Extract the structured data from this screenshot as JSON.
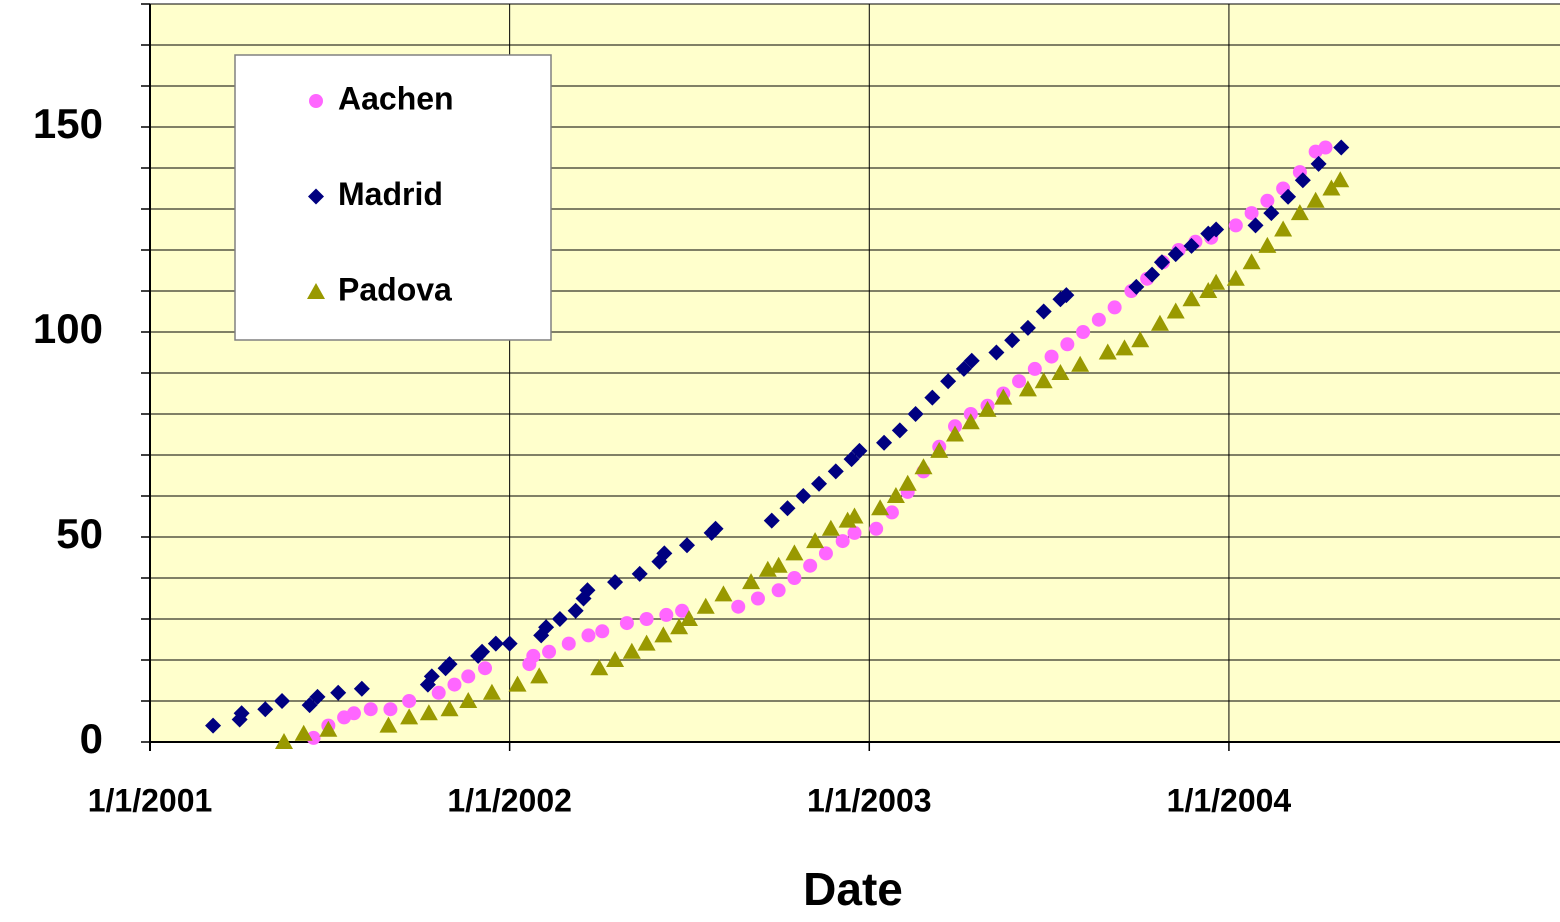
{
  "chart_data": {
    "type": "scatter",
    "xlabel": "Date",
    "xlim": [
      "2001-01-01",
      "2004-12-02"
    ],
    "xticks": [
      {
        "value": "2001-01-01",
        "label": "1/1/2001"
      },
      {
        "value": "2002-01-01",
        "label": "1/1/2002"
      },
      {
        "value": "2003-01-01",
        "label": "1/1/2003"
      },
      {
        "value": "2004-01-01",
        "label": "1/1/2004"
      }
    ],
    "ylim": [
      0,
      180
    ],
    "yticks": [
      0,
      50,
      100,
      150
    ],
    "yminorticks": [
      10,
      20,
      30,
      40,
      60,
      70,
      80,
      90,
      110,
      120,
      130,
      140,
      160,
      170,
      180
    ],
    "grid": true,
    "legend": "upper left",
    "series": [
      {
        "name": "Aachen",
        "color": "#ff66ff",
        "marker": "circle",
        "x": [
          "2001-06-16",
          "2001-07-01",
          "2001-07-17",
          "2001-07-27",
          "2001-08-13",
          "2001-09-02",
          "2001-09-21",
          "2001-10-21",
          "2001-11-06",
          "2001-11-20",
          "2001-12-07",
          "2002-01-21",
          "2002-01-25",
          "2002-02-10",
          "2002-03-02",
          "2002-03-22",
          "2002-04-05",
          "2002-04-30",
          "2002-05-20",
          "2002-06-09",
          "2002-06-25",
          "2002-08-21",
          "2002-09-10",
          "2002-10-01",
          "2002-10-17",
          "2002-11-02",
          "2002-11-18",
          "2002-12-05",
          "2002-12-17",
          "2003-01-08",
          "2003-01-24",
          "2003-02-09",
          "2003-02-25",
          "2003-03-13",
          "2003-03-29",
          "2003-04-14",
          "2003-05-01",
          "2003-05-17",
          "2003-06-02",
          "2003-06-18",
          "2003-07-05",
          "2003-07-21",
          "2003-08-06",
          "2003-08-22",
          "2003-09-07",
          "2003-09-24",
          "2003-10-10",
          "2003-10-26",
          "2003-11-11",
          "2003-11-28",
          "2003-12-14",
          "2004-01-08",
          "2004-01-24",
          "2004-02-09",
          "2004-02-25",
          "2004-03-13",
          "2004-03-29",
          "2004-04-08"
        ],
        "values": [
          1,
          4,
          6,
          7,
          8,
          8,
          10,
          12,
          14,
          16,
          18,
          19,
          21,
          22,
          24,
          26,
          27,
          29,
          30,
          31,
          32,
          33,
          35,
          37,
          40,
          43,
          46,
          49,
          51,
          52,
          56,
          61,
          66,
          72,
          77,
          80,
          82,
          85,
          88,
          91,
          94,
          97,
          100,
          103,
          106,
          110,
          113,
          117,
          120,
          122,
          123,
          126,
          129,
          132,
          135,
          139,
          144,
          145
        ]
      },
      {
        "name": "Madrid",
        "color": "#000080",
        "marker": "diamond",
        "x": [
          "2001-03-06",
          "2001-04-02",
          "2001-04-04",
          "2001-04-28",
          "2001-05-15",
          "2001-06-12",
          "2001-06-20",
          "2001-07-11",
          "2001-08-04",
          "2001-10-10",
          "2001-10-14",
          "2001-10-28",
          "2001-11-01",
          "2001-11-30",
          "2001-12-04",
          "2001-12-18",
          "2002-01-01",
          "2002-02-02",
          "2002-02-07",
          "2002-02-21",
          "2002-03-09",
          "2002-03-17",
          "2002-03-21",
          "2002-04-18",
          "2002-05-13",
          "2002-06-02",
          "2002-06-07",
          "2002-06-30",
          "2002-07-25",
          "2002-07-29",
          "2002-09-24",
          "2002-10-10",
          "2002-10-26",
          "2002-11-11",
          "2002-11-28",
          "2002-12-14",
          "2002-12-22",
          "2003-01-16",
          "2003-02-01",
          "2003-02-17",
          "2003-03-06",
          "2003-03-22",
          "2003-04-07",
          "2003-04-15",
          "2003-05-10",
          "2003-05-26",
          "2003-06-11",
          "2003-06-27",
          "2003-07-14",
          "2003-07-20",
          "2003-09-29",
          "2003-10-15",
          "2003-10-25",
          "2003-11-08",
          "2003-11-24",
          "2003-12-11",
          "2003-12-19",
          "2004-01-28",
          "2004-02-13",
          "2004-03-01",
          "2004-03-16",
          "2004-04-01",
          "2004-04-24"
        ],
        "values": [
          4,
          5.5,
          7,
          8,
          10,
          9,
          11,
          12,
          13,
          14,
          16,
          18,
          19,
          21,
          22,
          24,
          24,
          26,
          28,
          30,
          32,
          35,
          37,
          39,
          41,
          44,
          46,
          48,
          51,
          52,
          54,
          57,
          60,
          63,
          66,
          69,
          71,
          73,
          76,
          80,
          84,
          88,
          91,
          93,
          95,
          98,
          101,
          105,
          108,
          109,
          111,
          114,
          117,
          119,
          121,
          124,
          125,
          126,
          129,
          133,
          137,
          141,
          145
        ]
      },
      {
        "name": "Padova",
        "color": "#999900",
        "marker": "triangle",
        "x": [
          "2001-05-17",
          "2001-06-06",
          "2001-07-01",
          "2001-08-31",
          "2001-09-21",
          "2001-10-11",
          "2001-11-01",
          "2001-11-20",
          "2001-12-14",
          "2002-01-09",
          "2002-01-31",
          "2002-04-02",
          "2002-04-18",
          "2002-05-05",
          "2002-05-20",
          "2002-06-06",
          "2002-06-22",
          "2002-07-02",
          "2002-07-19",
          "2002-08-06",
          "2002-09-03",
          "2002-09-20",
          "2002-10-01",
          "2002-10-17",
          "2002-11-07",
          "2002-11-23",
          "2002-12-10",
          "2002-12-17",
          "2003-01-12",
          "2003-01-28",
          "2003-02-09",
          "2003-02-25",
          "2003-03-13",
          "2003-03-29",
          "2003-04-14",
          "2003-05-01",
          "2003-05-17",
          "2003-06-11",
          "2003-06-27",
          "2003-07-14",
          "2003-08-03",
          "2003-08-31",
          "2003-09-17",
          "2003-10-03",
          "2003-10-23",
          "2003-11-08",
          "2003-11-24",
          "2003-12-11",
          "2003-12-19",
          "2004-01-08",
          "2004-01-24",
          "2004-02-09",
          "2004-02-25",
          "2004-03-13",
          "2004-03-29",
          "2004-04-14",
          "2004-04-23"
        ],
        "values": [
          0,
          2,
          3,
          4,
          6,
          7,
          8,
          10,
          12,
          14,
          16,
          18,
          20,
          22,
          24,
          26,
          28,
          30,
          33,
          36,
          39,
          42,
          43,
          46,
          49,
          52,
          54,
          55,
          57,
          60,
          63,
          67,
          71,
          75,
          78,
          81,
          84,
          86,
          88,
          90,
          92,
          95,
          96,
          98,
          102,
          105,
          108,
          110,
          112,
          113,
          117,
          121,
          125,
          129,
          132,
          135,
          137
        ]
      }
    ]
  }
}
